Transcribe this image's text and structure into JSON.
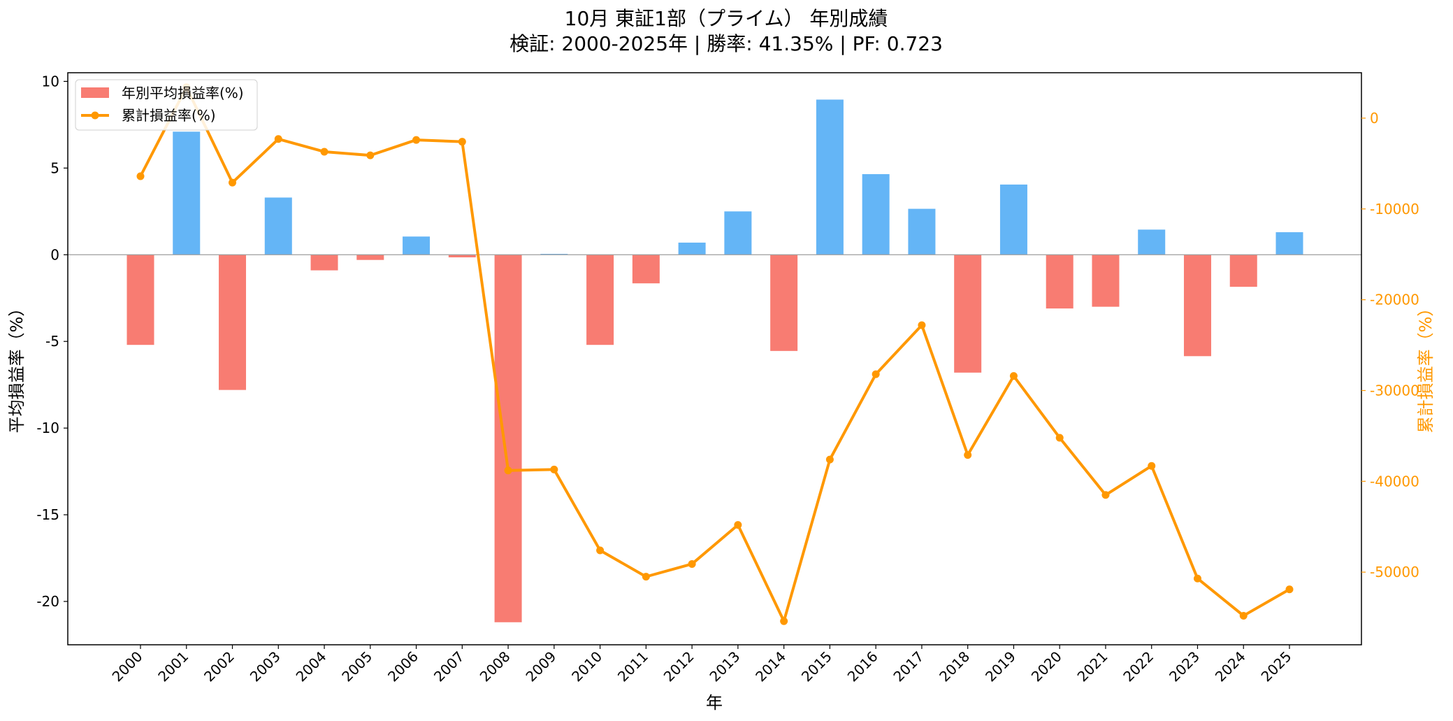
{
  "chart_data": {
    "type": "bar",
    "title": "10月 東証1部（プライム） 年別成績",
    "subtitle": "検証: 2000-2025年 | 勝率: 41.35% | PF: 0.723",
    "xlabel": "年",
    "ylabel": "平均損益率（%）",
    "y2label": "累計損益率（%）",
    "ylim": [
      -22.5,
      10.5
    ],
    "y2lim": [
      -58000,
      5000
    ],
    "yticks": [
      10,
      5,
      0,
      -5,
      -10,
      -15,
      -20
    ],
    "y2ticks": [
      0,
      -10000,
      -20000,
      -30000,
      -40000,
      -50000
    ],
    "legend_position": "upper-left",
    "positive_color": "#64b5f6",
    "negative_color": "#f87c72",
    "line_color": "#ff9800",
    "categories": [
      "2000",
      "2001",
      "2002",
      "2003",
      "2004",
      "2005",
      "2006",
      "2007",
      "2008",
      "2009",
      "2010",
      "2011",
      "2012",
      "2013",
      "2014",
      "2015",
      "2016",
      "2017",
      "2018",
      "2019",
      "2020",
      "2021",
      "2022",
      "2023",
      "2024",
      "2025"
    ],
    "series": [
      {
        "name": "年別平均損益率(%)",
        "axis": "left",
        "type": "bar",
        "values": [
          -5.2,
          7.1,
          -7.8,
          3.3,
          -0.9,
          -0.3,
          1.05,
          -0.15,
          -21.2,
          0.05,
          -5.2,
          -1.65,
          0.7,
          2.5,
          -5.55,
          8.95,
          4.65,
          2.65,
          -6.8,
          4.05,
          -3.1,
          -3.0,
          1.45,
          -5.85,
          -1.85,
          1.3
        ]
      },
      {
        "name": "累計損益率(%)",
        "axis": "right",
        "type": "line",
        "values": [
          -6400,
          3400,
          -7100,
          -2300,
          -3700,
          -4100,
          -2400,
          -2600,
          -38800,
          -38700,
          -47600,
          -50500,
          -49100,
          -44800,
          -55400,
          -37600,
          -28200,
          -22800,
          -37100,
          -28400,
          -35200,
          -41500,
          -38300,
          -50700,
          -54800,
          -51900
        ]
      }
    ]
  }
}
